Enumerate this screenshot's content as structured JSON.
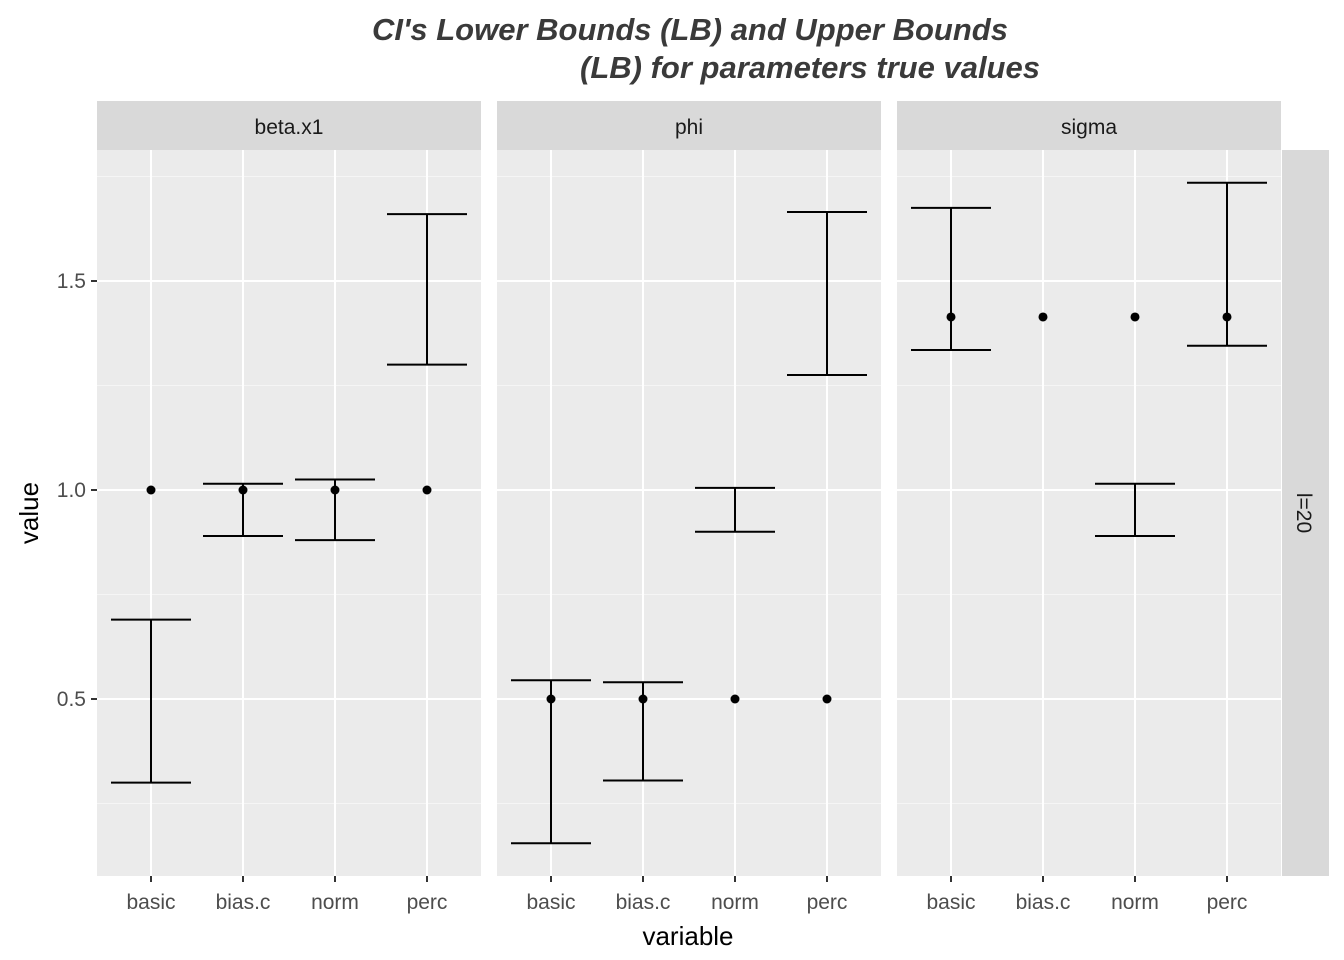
{
  "chart_data": {
    "type": "errorbar",
    "title": {
      "line1": "CI's Lower Bounds (LB) and Upper Bounds",
      "line2": "(LB) for parameters true values"
    },
    "xlabel": "variable",
    "ylabel": "value",
    "categories": [
      "basic",
      "bias.c",
      "norm",
      "perc"
    ],
    "ylim": [
      0.1,
      1.79
    ],
    "yticks": [
      0.5,
      1.0,
      1.5
    ],
    "ytick_labels": [
      "0.5",
      "1.0",
      "1.5"
    ],
    "grid": true,
    "row_strip": "l=20",
    "panels": [
      {
        "name": "beta.x1",
        "true_value": [
          1.0,
          1.0,
          1.0,
          1.0
        ],
        "lower": [
          0.3,
          0.89,
          0.88,
          1.3
        ],
        "upper": [
          0.69,
          1.015,
          1.025,
          1.66
        ]
      },
      {
        "name": "phi",
        "true_value": [
          0.5,
          0.5,
          0.5,
          0.5
        ],
        "lower": [
          0.155,
          0.305,
          0.9,
          1.275
        ],
        "upper": [
          0.545,
          0.54,
          1.005,
          1.665
        ]
      },
      {
        "name": "sigma",
        "true_value": [
          1.414,
          1.414,
          1.414,
          1.414
        ],
        "lower": [
          1.335,
          null,
          0.89,
          1.345
        ],
        "upper": [
          1.675,
          null,
          1.015,
          1.735
        ]
      }
    ]
  },
  "colors": {
    "panel_background": "#ebebeb",
    "strip_background": "#d9d9d9",
    "grid_major": "#ffffff",
    "grid_minor": "#f5f5f5",
    "errorbar": "#000000",
    "point": "#000000"
  }
}
